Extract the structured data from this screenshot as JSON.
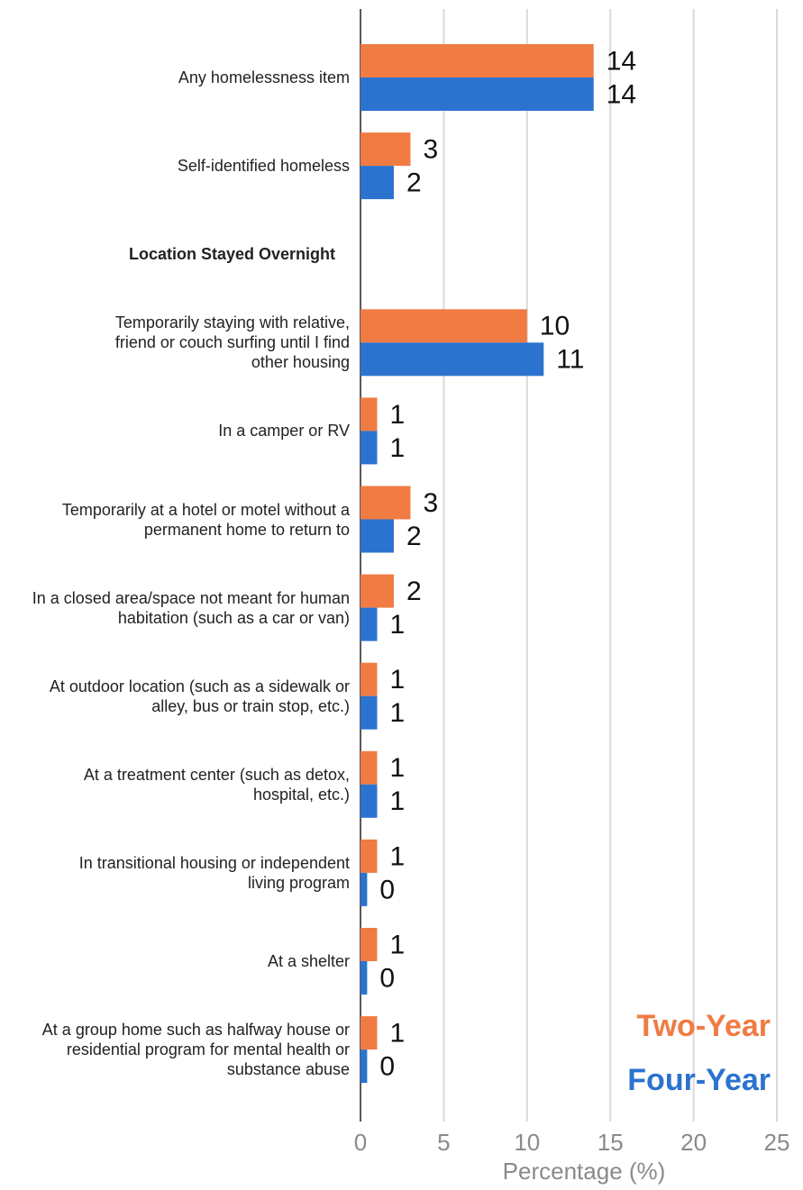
{
  "chart_data": {
    "type": "bar",
    "orientation": "horizontal",
    "xlabel": "Percentage (%)",
    "categories": [
      "Any homelessness item",
      "Self-identified homeless",
      "Location Stayed Overnight",
      "Temporarily staying with relative, friend or couch surfing until I find other housing",
      "In a camper or RV",
      "Temporarily at a hotel or motel without a permanent home to return to",
      "In a closed area/space not meant for human habitation (such as a car or van)",
      "At outdoor location (such as a sidewalk or alley, bus or train stop, etc.)",
      "At a treatment center (such as detox, hospital, etc.)",
      "In transitional housing or independent living program",
      "At a shelter",
      "At a group home such as halfway house or residential program for mental health or substance abuse"
    ],
    "series": [
      {
        "name": "Two-Year",
        "color": "#f07b43",
        "values": [
          14,
          3,
          null,
          10,
          1,
          3,
          2,
          1,
          1,
          1,
          1,
          1
        ]
      },
      {
        "name": "Four-Year",
        "color": "#2b73cf",
        "values": [
          14,
          2,
          null,
          11,
          1,
          2,
          1,
          1,
          1,
          0.4,
          0.4,
          0.4
        ],
        "value_labels": [
          "14",
          "2",
          null,
          "11",
          "1",
          "2",
          "1",
          "1",
          "1",
          "0",
          "0",
          "0"
        ]
      }
    ],
    "xlim": [
      0,
      25
    ],
    "xticks": [
      0,
      5,
      10,
      15,
      20,
      25
    ],
    "grid": true,
    "legend": "lower right"
  }
}
